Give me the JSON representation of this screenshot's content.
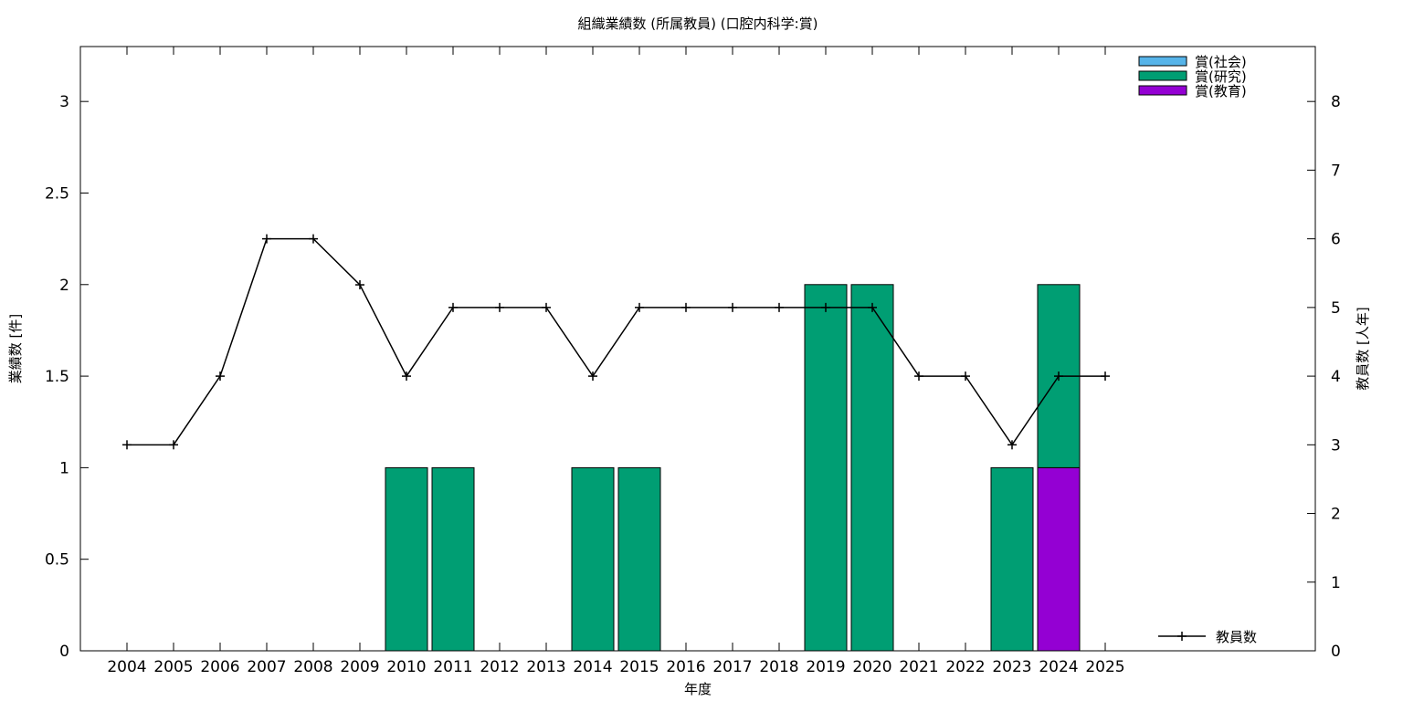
{
  "chart_data": {
    "type": "bar",
    "title": "組織業績数 (所属教員) (口腔内科学:賞)",
    "xlabel": "年度",
    "ylabel": "業績数 [件]",
    "y2label": "教員数 [人年]",
    "categories": [
      "2004",
      "2005",
      "2006",
      "2007",
      "2008",
      "2009",
      "2010",
      "2011",
      "2012",
      "2013",
      "2014",
      "2015",
      "2016",
      "2017",
      "2018",
      "2019",
      "2020",
      "2021",
      "2022",
      "2023",
      "2024",
      "2025"
    ],
    "ylim": [
      0,
      3.3
    ],
    "y2lim": [
      0,
      8.8
    ],
    "yticks": [
      "0",
      "0.5",
      "1",
      "1.5",
      "2",
      "2.5",
      "3"
    ],
    "y2ticks": [
      "0",
      "1",
      "2",
      "3",
      "4",
      "5",
      "6",
      "7",
      "8"
    ],
    "legend_position": "top-right",
    "stacked": true,
    "series": [
      {
        "name": "賞(社会)",
        "color": "#56b4e9",
        "values": [
          0,
          0,
          0,
          0,
          0,
          0,
          0,
          0,
          0,
          0,
          0,
          0,
          0,
          0,
          0,
          0,
          0,
          0,
          0,
          0,
          0,
          0
        ]
      },
      {
        "name": "賞(研究)",
        "color": "#009e73",
        "values": [
          0,
          0,
          0,
          0,
          0,
          0,
          1,
          1,
          0,
          0,
          1,
          1,
          0,
          0,
          0,
          2,
          2,
          0,
          0,
          1,
          1,
          0
        ]
      },
      {
        "name": "賞(教育)",
        "color": "#9400d3",
        "values": [
          0,
          0,
          0,
          0,
          0,
          0,
          0,
          0,
          0,
          0,
          0,
          0,
          0,
          0,
          0,
          0,
          0,
          0,
          0,
          0,
          1,
          0
        ]
      }
    ],
    "line_series": {
      "name": "教員数",
      "axis": "right",
      "color": "#000000",
      "values": [
        3,
        3,
        4,
        6,
        6,
        5.33,
        4,
        5,
        5,
        5,
        4,
        5,
        5,
        5,
        5,
        5,
        5,
        4,
        4,
        3,
        4,
        4
      ]
    }
  }
}
